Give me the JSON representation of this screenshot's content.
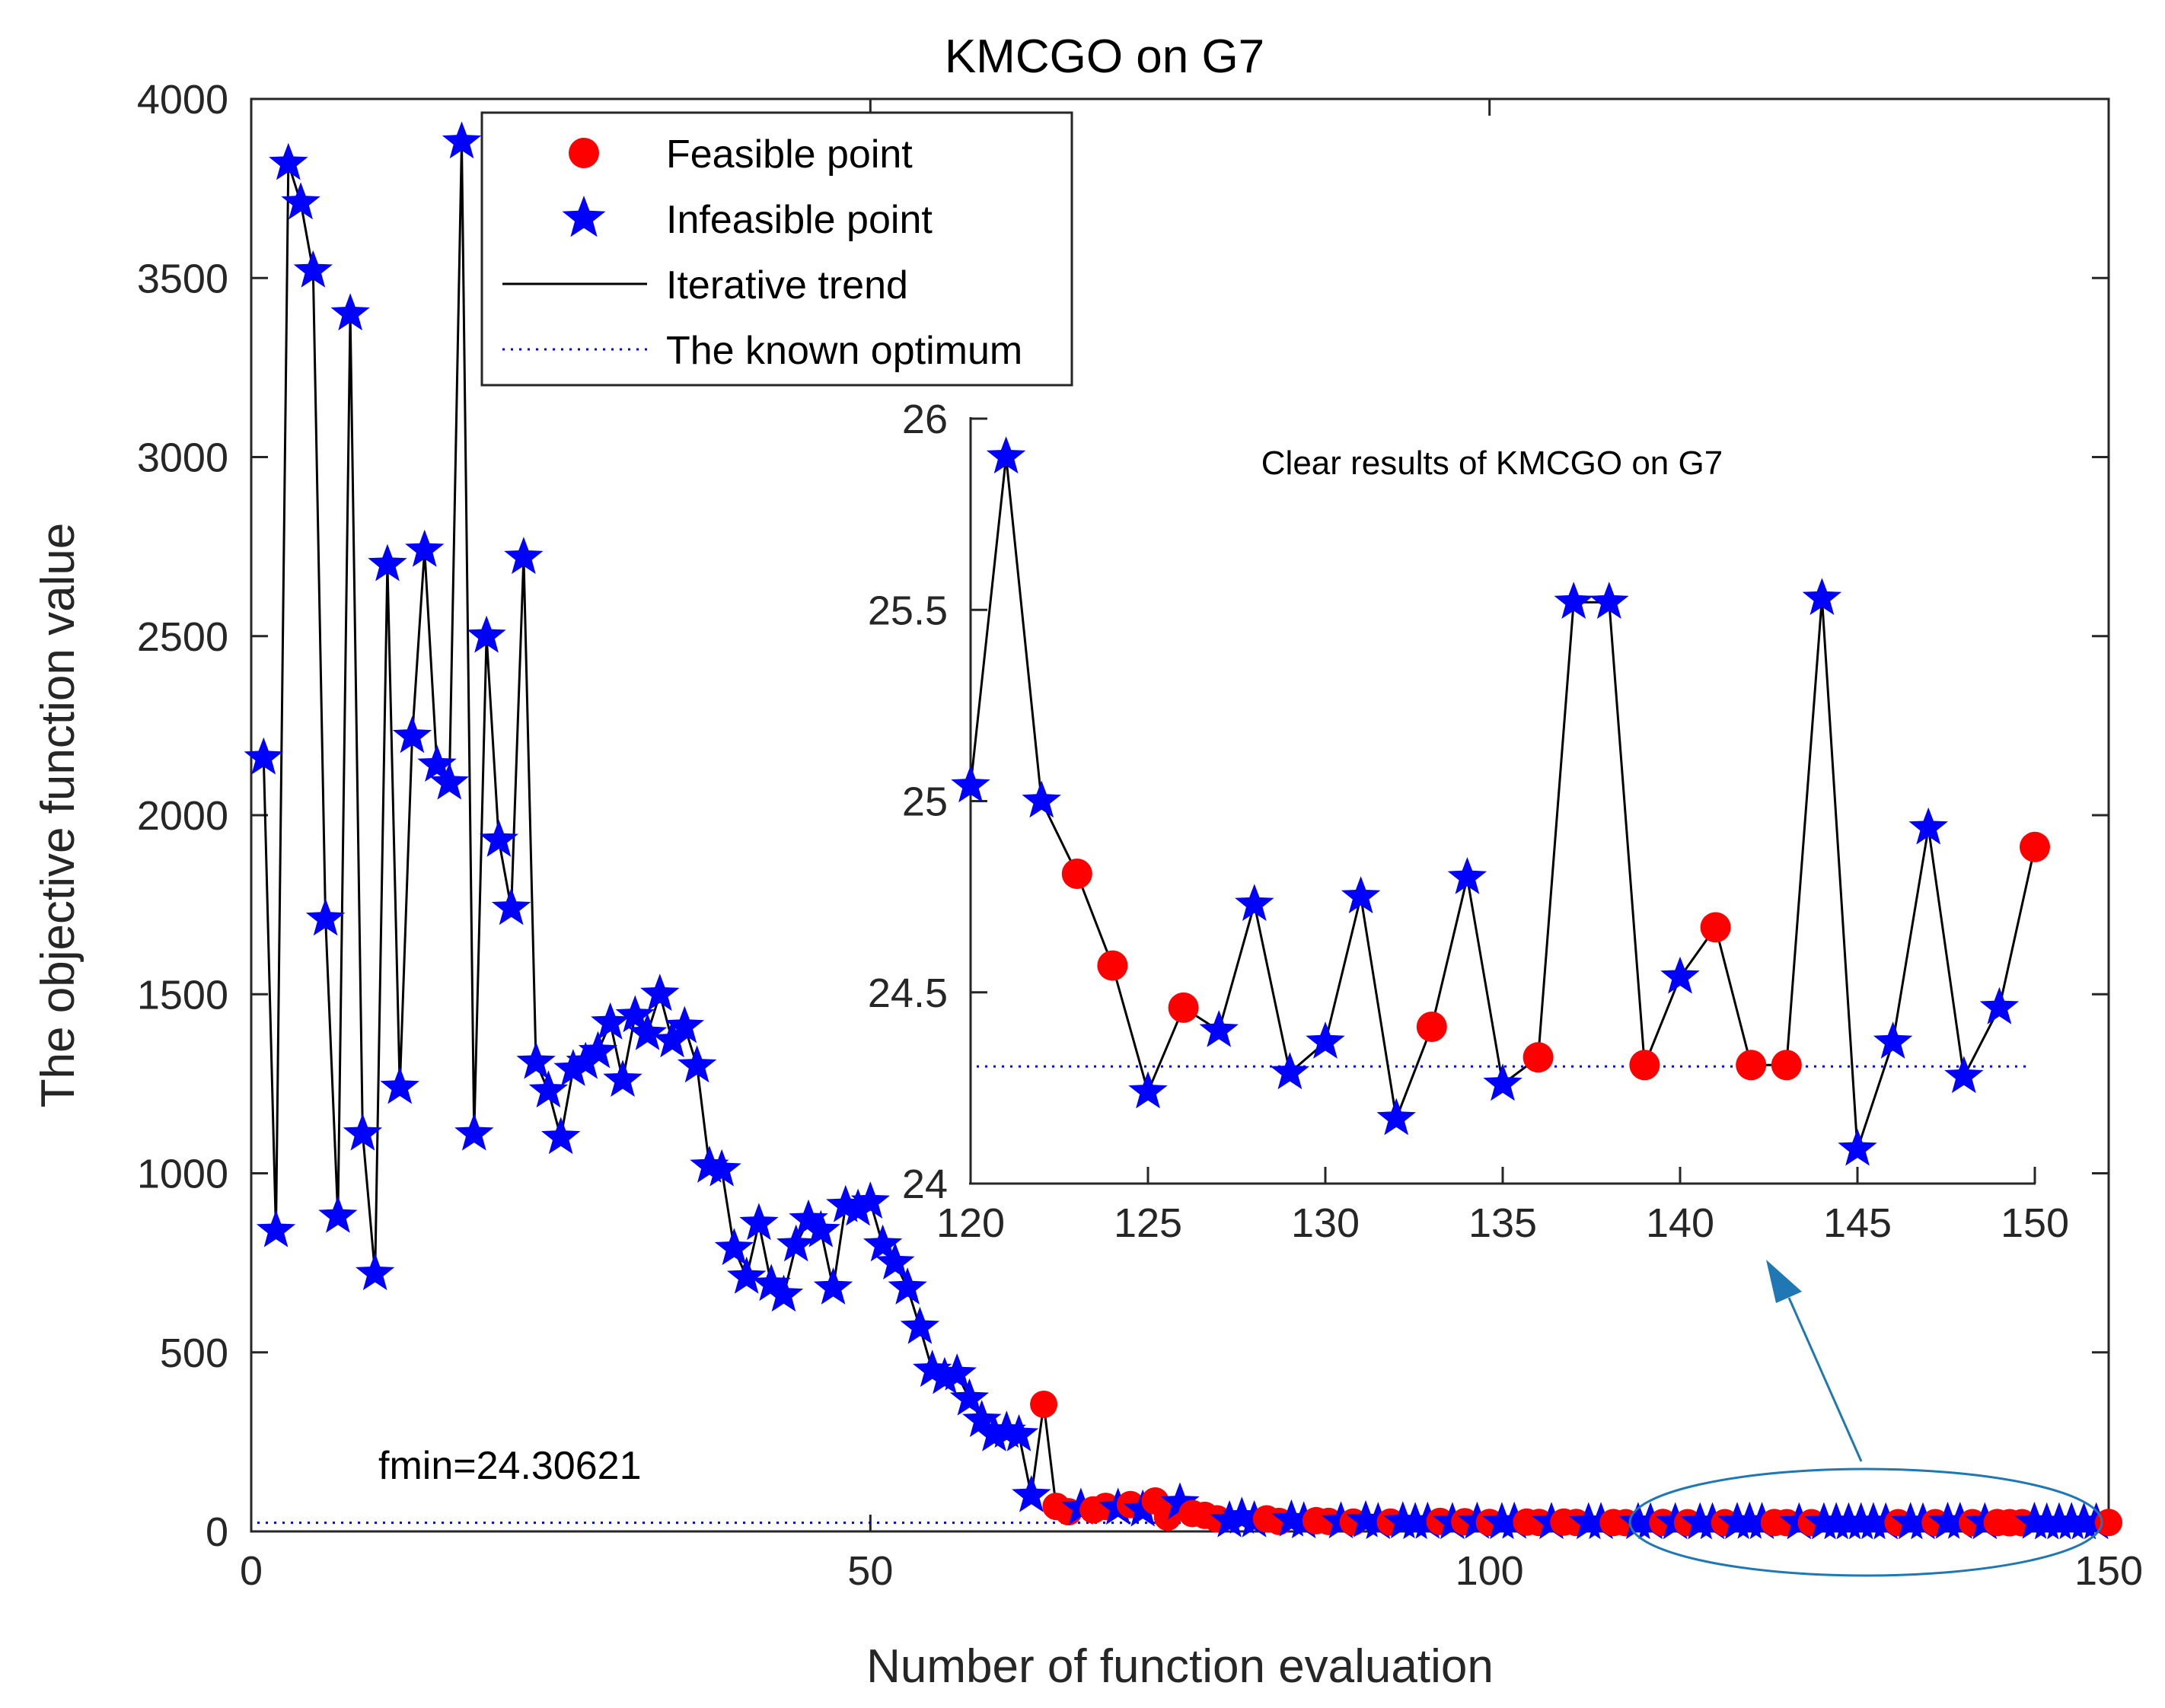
{
  "chart_data": [
    {
      "type": "line",
      "title": "KMCGO on G7",
      "xlabel": "Number of function evaluation",
      "ylabel": "The objective function value",
      "xlim": [
        0,
        150
      ],
      "ylim": [
        0,
        4000
      ],
      "xticks": [
        "0",
        "50",
        "100",
        "150"
      ],
      "yticks": [
        "0",
        "500",
        "1000",
        "1500",
        "2000",
        "2500",
        "3000",
        "3500",
        "4000"
      ],
      "annotation": "fmin=24.30621",
      "optimum": 24.30621,
      "legend": {
        "position": "top-left",
        "entries": [
          "Feasible point",
          "Infeasible point",
          "Iterative trend",
          "The known optimum"
        ]
      },
      "colors": {
        "feasible": "#ff0000",
        "infeasible": "#0000ff",
        "trend": "#000000",
        "optimum": "#0000ff",
        "ellipse": "#1f77b4"
      },
      "x": [
        1,
        2,
        3,
        4,
        5,
        6,
        7,
        8,
        9,
        10,
        11,
        12,
        13,
        14,
        15,
        16,
        17,
        18,
        19,
        20,
        21,
        22,
        23,
        24,
        25,
        26,
        27,
        28,
        29,
        30,
        31,
        32,
        33,
        34,
        35,
        36,
        37,
        38,
        39,
        40,
        41,
        42,
        43,
        44,
        45,
        46,
        47,
        48,
        49,
        50,
        51,
        52,
        53,
        54,
        55,
        56,
        57,
        58,
        59,
        60,
        61,
        62,
        63,
        64,
        65,
        66,
        67,
        68,
        69,
        70,
        71,
        72,
        73,
        74,
        75,
        76,
        77,
        78,
        79,
        80,
        81,
        82,
        83,
        84,
        85,
        86,
        87,
        88,
        89,
        90,
        91,
        92,
        93,
        94,
        95,
        96,
        97,
        98,
        99,
        100,
        101,
        102,
        103,
        104,
        105,
        106,
        107,
        108,
        109,
        110,
        111,
        112,
        113,
        114,
        115,
        116,
        117,
        118,
        119,
        120,
        121,
        122,
        123,
        124,
        125,
        126,
        127,
        128,
        129,
        130,
        131,
        132,
        133,
        134,
        135,
        136,
        137,
        138,
        139,
        140,
        141,
        142,
        143,
        144,
        145,
        146,
        147,
        148,
        149,
        150
      ],
      "values": [
        2160,
        840,
        3820,
        3710,
        3520,
        1710,
        880,
        3400,
        1110,
        720,
        2700,
        1240,
        2220,
        2740,
        2140,
        2090,
        3880,
        1110,
        2500,
        1930,
        1740,
        2720,
        1310,
        1230,
        1100,
        1290,
        1310,
        1340,
        1420,
        1260,
        1440,
        1390,
        1500,
        1370,
        1410,
        1300,
        1020,
        1010,
        790,
        710,
        860,
        690,
        660,
        800,
        870,
        840,
        680,
        910,
        900,
        920,
        800,
        750,
        680,
        570,
        450,
        430,
        440,
        370,
        310,
        270,
        280,
        270,
        100,
        355,
        70,
        55,
        65,
        60,
        70,
        65,
        75,
        60,
        85,
        40,
        80,
        50,
        45,
        35,
        30,
        40,
        30,
        35,
        28,
        32,
        27,
        30,
        28,
        27,
        26,
        30,
        25,
        26,
        27,
        25,
        26,
        28,
        25,
        27,
        26,
        25,
        25,
        26,
        26,
        25,
        25,
        26,
        25,
        24.5,
        25,
        24.8,
        24.5,
        25,
        24.5,
        25,
        24.5,
        24.5,
        24.4,
        24.5,
        24.5,
        25.04,
        25.9,
        25.0,
        24.81,
        24.57,
        24.24,
        24.46,
        24.4,
        24.73,
        24.29,
        24.37,
        24.75,
        24.17,
        24.41,
        24.8,
        24.26,
        24.33,
        25.52,
        25.52,
        24.31,
        24.54,
        24.67,
        24.31,
        24.31,
        25.53,
        24.09,
        24.37,
        24.93,
        24.28,
        24.46,
        24.88
      ],
      "feasible": [
        false,
        false,
        false,
        false,
        false,
        false,
        false,
        false,
        false,
        false,
        false,
        false,
        false,
        false,
        false,
        false,
        false,
        false,
        false,
        false,
        false,
        false,
        false,
        false,
        false,
        false,
        false,
        false,
        false,
        false,
        false,
        false,
        false,
        false,
        false,
        false,
        false,
        false,
        false,
        false,
        false,
        false,
        false,
        false,
        false,
        false,
        false,
        false,
        false,
        false,
        false,
        false,
        false,
        false,
        false,
        false,
        false,
        false,
        false,
        false,
        false,
        false,
        false,
        true,
        true,
        true,
        false,
        true,
        true,
        false,
        true,
        false,
        true,
        true,
        false,
        true,
        true,
        true,
        false,
        false,
        false,
        true,
        true,
        false,
        false,
        true,
        true,
        false,
        true,
        false,
        false,
        true,
        false,
        false,
        false,
        true,
        false,
        true,
        false,
        true,
        false,
        false,
        true,
        true,
        false,
        true,
        true,
        false,
        false,
        true,
        true,
        false,
        false,
        true,
        false,
        true,
        false,
        false,
        true,
        false,
        false,
        false,
        true,
        true,
        false,
        true,
        false,
        false,
        false,
        false,
        false,
        false,
        true,
        false,
        false,
        true,
        false,
        false,
        true,
        false,
        true,
        true,
        true,
        false,
        false,
        false,
        false,
        false,
        false,
        true
      ]
    },
    {
      "type": "line",
      "title": "Clear results of KMCGO on G7",
      "xlim": [
        120,
        150
      ],
      "ylim": [
        24,
        26
      ],
      "xticks": [
        "120",
        "125",
        "130",
        "135",
        "140",
        "145",
        "150"
      ],
      "yticks": [
        "24",
        "24.5",
        "25",
        "25.5",
        "26"
      ],
      "optimum": 24.30621,
      "x": [
        120,
        121,
        122,
        123,
        124,
        125,
        126,
        127,
        128,
        129,
        130,
        131,
        132,
        133,
        134,
        135,
        136,
        137,
        138,
        139,
        140,
        141,
        142,
        143,
        144,
        145,
        146,
        147,
        148,
        149,
        150
      ],
      "values": [
        25.04,
        25.9,
        25.0,
        24.81,
        24.57,
        24.24,
        24.46,
        24.4,
        24.73,
        24.29,
        24.37,
        24.75,
        24.17,
        24.41,
        24.8,
        24.26,
        24.33,
        25.52,
        25.52,
        24.31,
        24.54,
        24.67,
        24.31,
        24.31,
        25.53,
        24.09,
        24.37,
        24.93,
        24.28,
        24.46,
        24.88
      ],
      "feasible": [
        false,
        false,
        false,
        true,
        true,
        false,
        true,
        false,
        false,
        false,
        false,
        false,
        false,
        true,
        false,
        false,
        true,
        false,
        false,
        true,
        false,
        true,
        true,
        true,
        false,
        false,
        false,
        false,
        false,
        false,
        true
      ]
    }
  ]
}
